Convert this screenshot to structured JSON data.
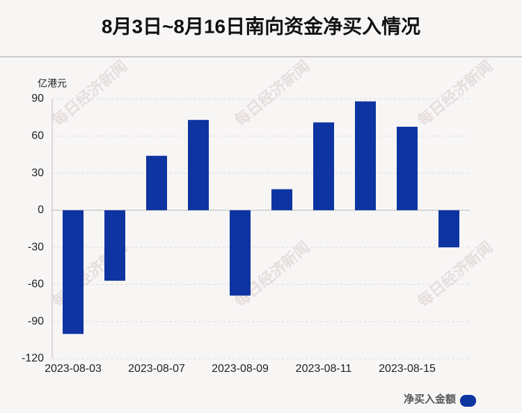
{
  "chart_data": {
    "type": "bar",
    "title": "8月3日~8月16日南向资金净买入情况",
    "y_label": "亿港元",
    "categories": [
      "2023-08-03",
      null,
      "2023-08-07",
      null,
      "2023-08-09",
      null,
      "2023-08-11",
      null,
      "2023-08-15",
      null
    ],
    "series": [
      {
        "name": "净买入金额",
        "color": "#0d34a0",
        "values": [
          -100,
          -57,
          44,
          73,
          -69,
          17,
          71,
          88,
          67.5,
          -30
        ]
      }
    ],
    "ylim": [
      -120,
      90
    ],
    "yticks": [
      -120,
      -90,
      -60,
      -30,
      0,
      30,
      60,
      90
    ],
    "grid": true,
    "legend": "bottom-right",
    "watermark": "每日经济新闻"
  }
}
